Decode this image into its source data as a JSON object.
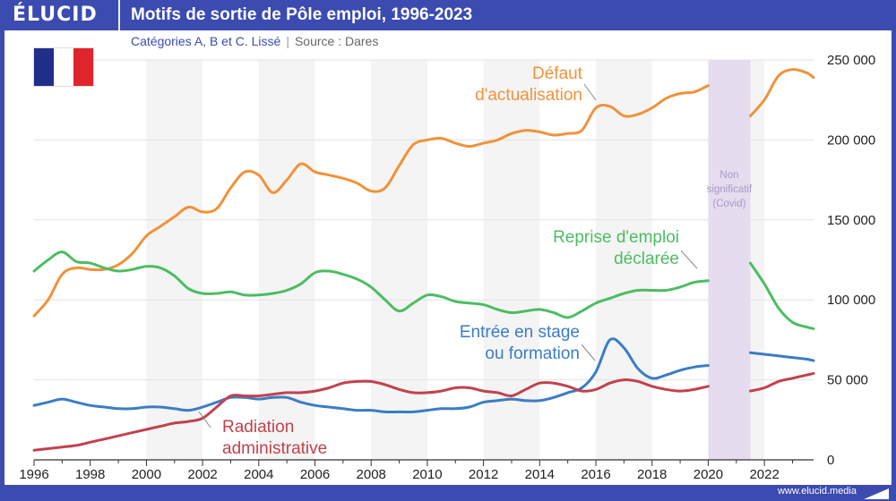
{
  "header": {
    "logo": "ÉLUCID",
    "title": "Motifs de sortie de Pôle emploi, 1996-2023"
  },
  "subtitle": {
    "text": "Catégories A, B et C. Lissé",
    "source": "Source : Dares"
  },
  "flag": {
    "colors": [
      "#1f2f8a",
      "#ffffff",
      "#e0242b"
    ]
  },
  "footer": {
    "url": "www.elucid.media"
  },
  "chart_data": {
    "type": "line",
    "title": "Motifs de sortie de Pôle emploi, 1996-2023",
    "subtitle": "Catégories A, B et C. Lissé",
    "xlim": [
      1996,
      2023.75
    ],
    "ylim": [
      0,
      250000
    ],
    "x_ticks": [
      1996,
      1998,
      2000,
      2002,
      2004,
      2006,
      2008,
      2010,
      2012,
      2014,
      2016,
      2018,
      2020,
      2022
    ],
    "y_ticks": [
      0,
      50000,
      100000,
      150000,
      200000,
      250000
    ],
    "y_tick_labels": [
      "0",
      "50 000",
      "100 000",
      "150 000",
      "200 000",
      "250 000"
    ],
    "grid": "alternating-year-bands",
    "shaded_region": {
      "from": 2020,
      "to": 2021.5,
      "label": [
        "Non",
        "significatif",
        "(Covid)"
      ]
    },
    "series": [
      {
        "name": "Défaut d'actualisation",
        "label": [
          "Défaut",
          "d'actualisation"
        ],
        "color": "#f0923a",
        "x": [
          1996,
          1996.5,
          1997,
          1997.5,
          1998,
          1998.5,
          1999,
          1999.5,
          2000,
          2000.5,
          2001,
          2001.5,
          2002,
          2002.5,
          2003,
          2003.5,
          2004,
          2004.5,
          2005,
          2005.5,
          2006,
          2006.5,
          2007,
          2007.5,
          2008,
          2008.5,
          2009,
          2009.5,
          2010,
          2010.5,
          2011,
          2011.5,
          2012,
          2012.5,
          2013,
          2013.5,
          2014,
          2014.5,
          2015,
          2015.5,
          2016,
          2016.5,
          2017,
          2017.5,
          2018,
          2018.5,
          2019,
          2019.5,
          2020,
          2021.5,
          2022,
          2022.5,
          2023,
          2023.5,
          2023.75
        ],
        "values": [
          90000,
          100000,
          116000,
          120000,
          119000,
          119000,
          122000,
          129000,
          140000,
          146000,
          152000,
          158000,
          155000,
          157000,
          170000,
          180000,
          178000,
          167000,
          175000,
          185000,
          180000,
          178000,
          176000,
          173000,
          168000,
          170000,
          184000,
          197000,
          200000,
          201000,
          198000,
          196000,
          198000,
          200000,
          204000,
          206000,
          205000,
          203000,
          204000,
          206000,
          220000,
          221000,
          215000,
          216000,
          220000,
          226000,
          229000,
          230000,
          234000,
          215000,
          225000,
          240000,
          244000,
          242000,
          239000
        ]
      },
      {
        "name": "Reprise d'emploi déclarée",
        "label": [
          "Reprise d'emploi",
          "déclarée"
        ],
        "color": "#4cbd63",
        "x": [
          1996,
          1996.5,
          1997,
          1997.5,
          1998,
          1998.5,
          1999,
          1999.5,
          2000,
          2000.5,
          2001,
          2001.5,
          2002,
          2002.5,
          2003,
          2003.5,
          2004,
          2004.5,
          2005,
          2005.5,
          2006,
          2006.5,
          2007,
          2007.5,
          2008,
          2008.5,
          2009,
          2009.5,
          2010,
          2010.5,
          2011,
          2011.5,
          2012,
          2012.5,
          2013,
          2013.5,
          2014,
          2014.5,
          2015,
          2015.5,
          2016,
          2016.5,
          2017,
          2017.5,
          2018,
          2018.5,
          2019,
          2019.5,
          2020,
          2021.5,
          2022,
          2022.5,
          2023,
          2023.5,
          2023.75
        ],
        "values": [
          118000,
          125000,
          130000,
          124000,
          123000,
          120000,
          118000,
          119000,
          121000,
          120000,
          115000,
          107000,
          104000,
          104000,
          105000,
          103000,
          103000,
          104000,
          106000,
          110000,
          117000,
          118000,
          116000,
          113000,
          108000,
          100000,
          93000,
          98000,
          103000,
          102000,
          99000,
          98000,
          97000,
          94000,
          92000,
          93000,
          94000,
          92000,
          89000,
          93000,
          98000,
          101000,
          104000,
          106000,
          106000,
          106000,
          108000,
          111000,
          112000,
          123000,
          110000,
          95000,
          86000,
          83000,
          82000
        ]
      },
      {
        "name": "Entrée en stage ou formation",
        "label": [
          "Entrée en stage",
          "ou formation"
        ],
        "color": "#3a7dc4",
        "x": [
          1996,
          1996.5,
          1997,
          1997.5,
          1998,
          1998.5,
          1999,
          1999.5,
          2000,
          2000.5,
          2001,
          2001.5,
          2002,
          2002.5,
          2003,
          2003.5,
          2004,
          2004.5,
          2005,
          2005.5,
          2006,
          2006.5,
          2007,
          2007.5,
          2008,
          2008.5,
          2009,
          2009.5,
          2010,
          2010.5,
          2011,
          2011.5,
          2012,
          2012.5,
          2013,
          2013.5,
          2014,
          2014.5,
          2015,
          2015.5,
          2016,
          2016.5,
          2017,
          2017.5,
          2018,
          2018.5,
          2019,
          2019.5,
          2020,
          2021.5,
          2022,
          2022.5,
          2023,
          2023.5,
          2023.75
        ],
        "values": [
          34000,
          36000,
          38000,
          36000,
          34000,
          33000,
          32000,
          32000,
          33000,
          33000,
          32000,
          31000,
          33000,
          36000,
          39000,
          39000,
          38000,
          39000,
          39000,
          36000,
          34000,
          33000,
          32000,
          31000,
          31000,
          30000,
          30000,
          30000,
          31000,
          32000,
          32000,
          33000,
          36000,
          37000,
          38000,
          37000,
          37000,
          39000,
          42000,
          45000,
          55000,
          75000,
          70000,
          57000,
          51000,
          53000,
          56000,
          58000,
          59000,
          67000,
          66000,
          65000,
          64000,
          63000,
          62000
        ]
      },
      {
        "name": "Radiation administrative",
        "label": [
          "Radiation",
          "administrative"
        ],
        "color": "#c1424e",
        "x": [
          1996,
          1996.5,
          1997,
          1997.5,
          1998,
          1998.5,
          1999,
          1999.5,
          2000,
          2000.5,
          2001,
          2001.5,
          2002,
          2002.5,
          2003,
          2003.5,
          2004,
          2004.5,
          2005,
          2005.5,
          2006,
          2006.5,
          2007,
          2007.5,
          2008,
          2008.5,
          2009,
          2009.5,
          2010,
          2010.5,
          2011,
          2011.5,
          2012,
          2012.5,
          2013,
          2013.5,
          2014,
          2014.5,
          2015,
          2015.5,
          2016,
          2016.5,
          2017,
          2017.5,
          2018,
          2018.5,
          2019,
          2019.5,
          2020,
          2021.5,
          2022,
          2022.5,
          2023,
          2023.5,
          2023.75
        ],
        "values": [
          6000,
          7000,
          8000,
          9000,
          11000,
          13000,
          15000,
          17000,
          19000,
          21000,
          23000,
          24000,
          26000,
          33000,
          40000,
          40000,
          40000,
          41000,
          42000,
          42000,
          43000,
          45000,
          48000,
          49000,
          49000,
          47000,
          44000,
          42000,
          42000,
          43000,
          45000,
          45000,
          43000,
          42000,
          40000,
          44000,
          48000,
          48000,
          46000,
          43000,
          44000,
          48000,
          50000,
          49000,
          46000,
          44000,
          43000,
          44000,
          46000,
          43000,
          45000,
          49000,
          51000,
          53000,
          54000
        ]
      }
    ]
  }
}
